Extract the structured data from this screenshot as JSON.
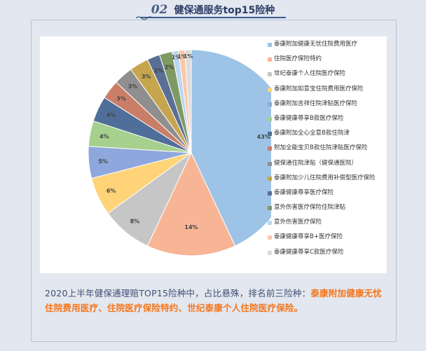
{
  "header": {
    "number": "02",
    "title": "健保通服务top15险种"
  },
  "chart_data": {
    "type": "pie",
    "title": "",
    "slices": [
      {
        "label": "泰康附加健康无忧住院费用医疗",
        "value": 43,
        "display": "43%",
        "color": "#9dc3e6"
      },
      {
        "label": "住院医疗保险特约",
        "value": 14,
        "display": "14%",
        "color": "#f8b596"
      },
      {
        "label": "世纪泰康个人住院医疗保险",
        "value": 8,
        "display": "8%",
        "color": "#c6c6c6"
      },
      {
        "label": "泰康附加如意宝住院费用医疗保险",
        "value": 6,
        "display": "6%",
        "color": "#ffd478"
      },
      {
        "label": "泰康附加吉祥住院津贴医疗保险",
        "value": 5,
        "display": "5%",
        "color": "#8ea7dd"
      },
      {
        "label": "泰康健康尊享B款医疗保险",
        "value": 4,
        "display": "4%",
        "color": "#a6d08d"
      },
      {
        "label": "泰康附加全心全意B款住院津",
        "value": 4,
        "display": "4%",
        "color": "#4f6e99"
      },
      {
        "label": "附加全能宝贝B款住院津贴医疗保险",
        "value": 3,
        "display": "3%",
        "color": "#c97e67"
      },
      {
        "label": "健保通住院津贴（健保通医院）",
        "value": 3,
        "display": "3%",
        "color": "#8f8f8f"
      },
      {
        "label": "泰康附加少儿住院费用补偿型医疗保险",
        "value": 3,
        "display": "3%",
        "color": "#c6a54e"
      },
      {
        "label": "泰康健康尊享医疗保险",
        "value": 2,
        "display": "2%",
        "color": "#5a6f95"
      },
      {
        "label": "意外伤害医疗保险住院津贴",
        "value": 2,
        "display": "2%",
        "color": "#7f9963"
      },
      {
        "label": "意外伤害医疗保险",
        "value": 1,
        "display": "1%",
        "color": "#b9d7f1"
      },
      {
        "label": "泰康健康尊享B+医疗保险",
        "value": 1,
        "display": "1%",
        "color": "#fbc8aa"
      },
      {
        "label": "泰康健康尊享C款医疗保险",
        "value": 1,
        "display": "1%",
        "color": "#dcdcdc"
      }
    ]
  },
  "caption": {
    "text": "2020上半年健保通理赔TOP15险种中，占比悬殊，排名前三险种：",
    "highlight": "泰康附加健康无忧住院费用医疗、住院医疗保险特约、世纪泰康个人住院医疗保险。"
  }
}
